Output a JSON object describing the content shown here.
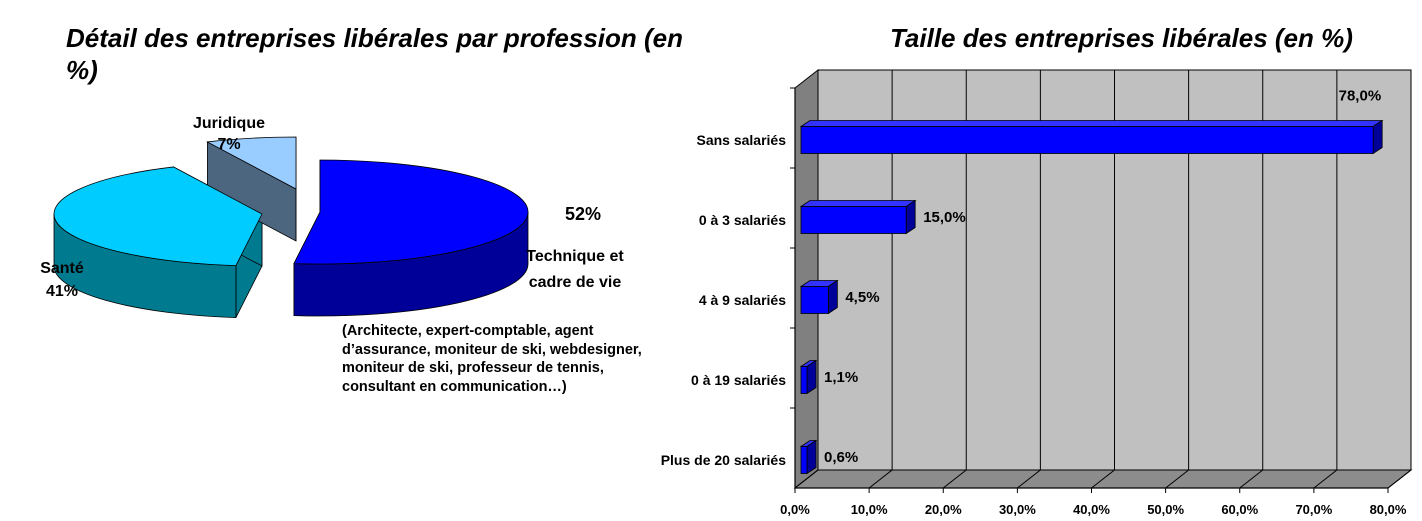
{
  "chart_data": [
    {
      "type": "pie",
      "title": "Détail des entreprises libérales par profession (en %)",
      "slices": [
        {
          "name": "Technique et cadre de vie",
          "value": 52,
          "label": "52%",
          "color": "#0000ff"
        },
        {
          "name": "Santé",
          "value": 41,
          "label": "41%",
          "color": "#00ccff"
        },
        {
          "name": "Juridique",
          "value": 7,
          "label": "7%",
          "color": "#99ccff"
        }
      ],
      "note": "(Architecte, expert-comptable, agent d’assurance, moniteur de ski, webdesigner, moniteur de ski, professeur de tennis, consultant en communication…)"
    },
    {
      "type": "bar",
      "orientation": "horizontal",
      "title": "Taille des entreprises libérales (en %)",
      "categories": [
        "Sans salariés",
        "0 à 3 salariés",
        "4 à 9 salariés",
        "0 à 19 salariés",
        "Plus de 20 salariés"
      ],
      "values": [
        78.0,
        15.0,
        4.5,
        1.1,
        0.6
      ],
      "value_labels": [
        "78,0%",
        "15,0%",
        "4,5%",
        "1,1%",
        "0,6%"
      ],
      "xlim": [
        0,
        80
      ],
      "x_ticks": [
        "0,0%",
        "10,0%",
        "20,0%",
        "30,0%",
        "40,0%",
        "50,0%",
        "60,0%",
        "70,0%",
        "80,0%"
      ],
      "grid": true,
      "bar_color": "#0000ff",
      "wall_color": "#c0c0c0"
    }
  ]
}
